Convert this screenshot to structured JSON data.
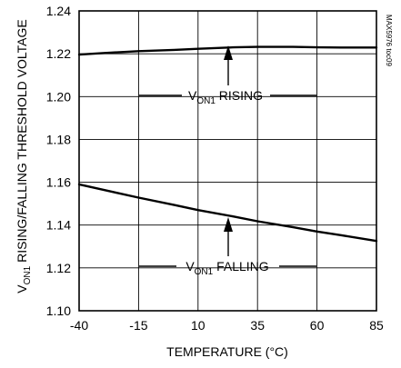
{
  "chart_code": "MAX5976 toc09",
  "chart_data": {
    "type": "line",
    "title": "",
    "xlabel": "TEMPERATURE (°C)",
    "ylabel": {
      "prefix": "V",
      "subscript": "ON1",
      "rest": " RISING/FALLING THRESHOLD VOLTAGE"
    },
    "xlim": [
      -40,
      85
    ],
    "ylim": [
      1.1,
      1.24
    ],
    "x_ticks": [
      "-40",
      "-15",
      "10",
      "35",
      "60",
      "85"
    ],
    "y_ticks": [
      "1.10",
      "1.12",
      "1.14",
      "1.16",
      "1.18",
      "1.20",
      "1.22",
      "1.24"
    ],
    "grid": true,
    "series": [
      {
        "name": "rising",
        "label": {
          "prefix": "V",
          "subscript": "ON1",
          "rest": " RISING"
        },
        "x": [
          -40,
          -30,
          -15,
          0,
          10,
          25,
          35,
          50,
          60,
          70,
          85
        ],
        "y": [
          1.2196,
          1.2203,
          1.2212,
          1.2218,
          1.2223,
          1.223,
          1.2232,
          1.2232,
          1.223,
          1.2229,
          1.2229
        ]
      },
      {
        "name": "falling",
        "label": {
          "prefix": "V",
          "subscript": "ON1",
          "rest": " FALLING"
        },
        "x": [
          -40,
          -25,
          -15,
          0,
          10,
          25,
          35,
          50,
          60,
          70,
          85
        ],
        "y": [
          1.159,
          1.1553,
          1.1528,
          1.1494,
          1.147,
          1.144,
          1.1418,
          1.139,
          1.137,
          1.1353,
          1.1326
        ]
      }
    ]
  }
}
